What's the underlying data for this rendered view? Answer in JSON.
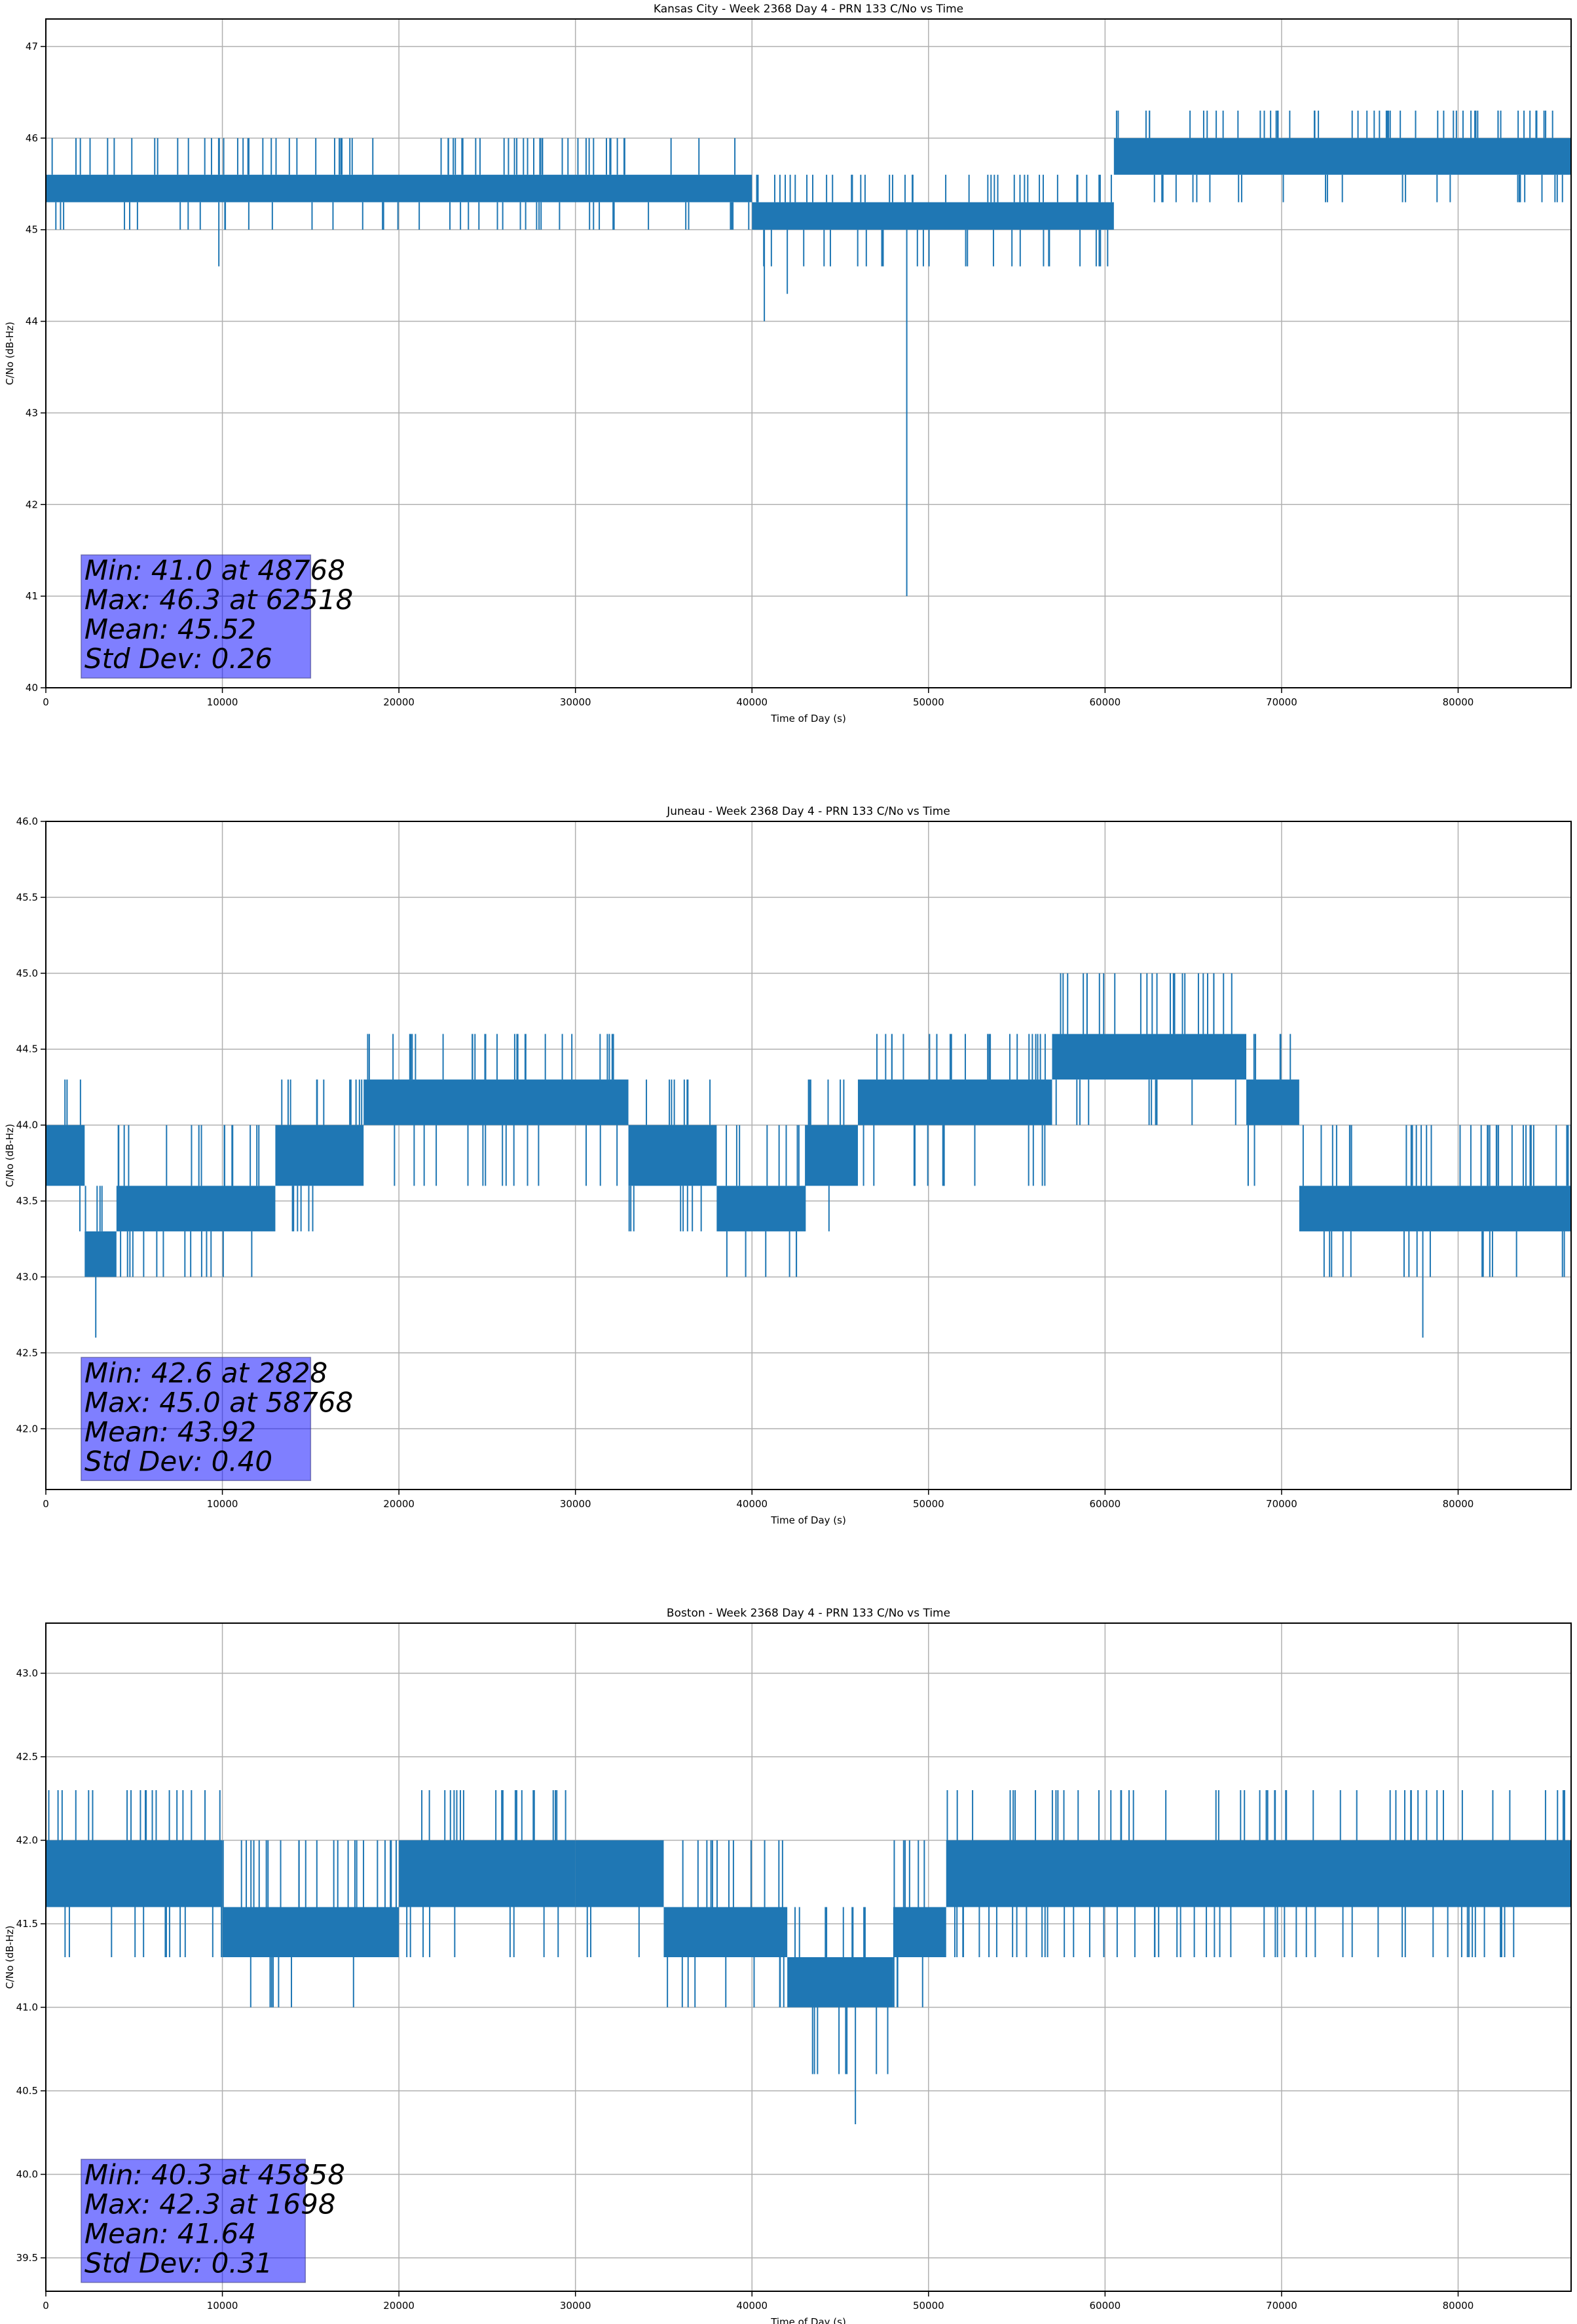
{
  "chart_data": [
    {
      "type": "line",
      "title": "Kansas City - Week 2368 Day 4 - PRN 133 C/No vs Time",
      "xlabel": "Time of Day (s)",
      "ylabel": "C/No (dB-Hz)",
      "xlim": [
        0,
        86400
      ],
      "ylim": [
        40,
        47.3
      ],
      "xticks": [
        0,
        10000,
        20000,
        30000,
        40000,
        50000,
        60000,
        70000,
        80000
      ],
      "yticks": [
        "40",
        "41",
        "42",
        "43",
        "44",
        "45",
        "46",
        "47"
      ],
      "grid": true,
      "color": "#1f77b4",
      "segments": [
        {
          "start": 0,
          "end": 40000,
          "band": [
            45.3,
            45.6
          ],
          "spikes": [
            45.0,
            46.0
          ]
        },
        {
          "start": 40000,
          "end": 60500,
          "band": [
            45.0,
            45.3
          ],
          "spikes": [
            44.6,
            45.6
          ]
        },
        {
          "start": 60500,
          "end": 86400,
          "band": [
            45.6,
            46.0
          ],
          "spikes": [
            45.3,
            46.3
          ]
        }
      ],
      "extremes": [
        [
          48768,
          41.0
        ],
        [
          40700,
          44.0
        ],
        [
          9800,
          44.6
        ],
        [
          42000,
          44.3
        ],
        [
          59500,
          44.6
        ],
        [
          62518,
          46.3
        ]
      ],
      "stats": [
        "Min: 41.0 at 48768",
        "Max: 46.3 at 62518",
        "Mean: 45.52",
        "Std Dev: 0.26"
      ]
    },
    {
      "type": "line",
      "title": "Juneau - Week 2368 Day 4 - PRN 133 C/No vs Time",
      "xlabel": "Time of Day (s)",
      "ylabel": "C/No (dB-Hz)",
      "xlim": [
        0,
        86400
      ],
      "ylim": [
        41.6,
        46.0
      ],
      "xticks": [
        0,
        10000,
        20000,
        30000,
        40000,
        50000,
        60000,
        70000,
        80000
      ],
      "yticks": [
        "42.0",
        "42.5",
        "43.0",
        "43.5",
        "44.0",
        "44.5",
        "45.0",
        "45.5",
        "46.0"
      ],
      "grid": true,
      "color": "#1f77b4",
      "segments": [
        {
          "start": 0,
          "end": 2200,
          "band": [
            43.6,
            44.0
          ],
          "spikes": [
            43.3,
            44.3
          ]
        },
        {
          "start": 2200,
          "end": 4000,
          "band": [
            43.0,
            43.3
          ],
          "spikes": [
            43.0,
            43.6
          ]
        },
        {
          "start": 4000,
          "end": 13000,
          "band": [
            43.3,
            43.6
          ],
          "spikes": [
            43.0,
            44.0
          ]
        },
        {
          "start": 13000,
          "end": 18000,
          "band": [
            43.6,
            44.0
          ],
          "spikes": [
            43.3,
            44.3
          ]
        },
        {
          "start": 18000,
          "end": 33000,
          "band": [
            44.0,
            44.3
          ],
          "spikes": [
            43.6,
            44.6
          ]
        },
        {
          "start": 33000,
          "end": 38000,
          "band": [
            43.6,
            44.0
          ],
          "spikes": [
            43.3,
            44.3
          ]
        },
        {
          "start": 38000,
          "end": 43000,
          "band": [
            43.3,
            43.6
          ],
          "spikes": [
            43.0,
            44.0
          ]
        },
        {
          "start": 43000,
          "end": 46000,
          "band": [
            43.6,
            44.0
          ],
          "spikes": [
            43.3,
            44.3
          ]
        },
        {
          "start": 46000,
          "end": 57000,
          "band": [
            44.0,
            44.3
          ],
          "spikes": [
            43.6,
            44.6
          ]
        },
        {
          "start": 57000,
          "end": 68000,
          "band": [
            44.3,
            44.6
          ],
          "spikes": [
            44.0,
            45.0
          ]
        },
        {
          "start": 68000,
          "end": 71000,
          "band": [
            44.0,
            44.3
          ],
          "spikes": [
            43.6,
            44.6
          ]
        },
        {
          "start": 71000,
          "end": 86400,
          "band": [
            43.3,
            43.6
          ],
          "spikes": [
            43.0,
            44.0
          ]
        }
      ],
      "extremes": [
        [
          2828,
          42.6
        ],
        [
          78000,
          42.6
        ],
        [
          58768,
          45.0
        ]
      ],
      "stats": [
        "Min: 42.6 at 2828",
        "Max: 45.0 at 58768",
        "Mean: 43.92",
        "Std Dev: 0.40"
      ]
    },
    {
      "type": "line",
      "title": "Boston - Week 2368 Day 4 - PRN 133 C/No vs Time",
      "xlabel": "Time of Day (s)",
      "ylabel": "C/No (dB-Hz)",
      "xlim": [
        0,
        86400
      ],
      "ylim": [
        39.3,
        43.3
      ],
      "xticks": [
        0,
        10000,
        20000,
        30000,
        40000,
        50000,
        60000,
        70000,
        80000
      ],
      "yticks": [
        "39.5",
        "40.0",
        "40.5",
        "41.0",
        "41.5",
        "42.0",
        "42.5",
        "43.0"
      ],
      "grid": true,
      "color": "#1f77b4",
      "segments": [
        {
          "start": 0,
          "end": 10000,
          "band": [
            41.6,
            42.0
          ],
          "spikes": [
            41.3,
            42.3
          ]
        },
        {
          "start": 10000,
          "end": 20000,
          "band": [
            41.3,
            41.6
          ],
          "spikes": [
            41.0,
            42.0
          ]
        },
        {
          "start": 20000,
          "end": 30000,
          "band": [
            41.6,
            42.0
          ],
          "spikes": [
            41.3,
            42.3
          ]
        },
        {
          "start": 30000,
          "end": 35000,
          "band": [
            41.6,
            42.0
          ],
          "spikes": [
            41.3,
            42.0
          ]
        },
        {
          "start": 35000,
          "end": 42000,
          "band": [
            41.3,
            41.6
          ],
          "spikes": [
            41.0,
            42.0
          ]
        },
        {
          "start": 42000,
          "end": 48000,
          "band": [
            41.0,
            41.3
          ],
          "spikes": [
            40.6,
            41.6
          ]
        },
        {
          "start": 48000,
          "end": 51000,
          "band": [
            41.3,
            41.6
          ],
          "spikes": [
            41.0,
            42.0
          ]
        },
        {
          "start": 51000,
          "end": 86400,
          "band": [
            41.6,
            42.0
          ],
          "spikes": [
            41.3,
            42.3
          ]
        }
      ],
      "extremes": [
        [
          45858,
          40.3
        ],
        [
          1698,
          42.3
        ]
      ],
      "stats": [
        "Min: 40.3 at 45858",
        "Max: 42.3 at 1698",
        "Mean: 41.64",
        "Std Dev: 0.31"
      ]
    }
  ]
}
